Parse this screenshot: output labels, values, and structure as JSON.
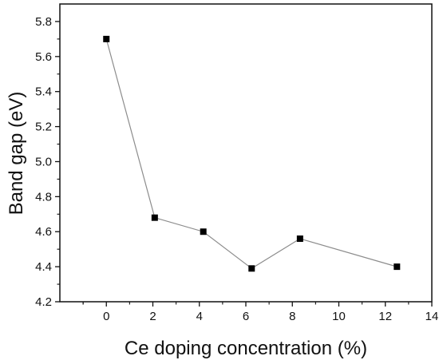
{
  "chart_data": {
    "type": "line",
    "title": "",
    "xlabel": "Ce doping concentration (%)",
    "ylabel": "Band gap (eV)",
    "xlim": [
      -2,
      14
    ],
    "ylim": [
      4.2,
      5.9
    ],
    "x_ticks": [
      0,
      2,
      4,
      6,
      8,
      10,
      12,
      14
    ],
    "y_ticks": [
      4.2,
      4.4,
      4.6,
      4.8,
      5.0,
      5.2,
      5.4,
      5.6,
      5.8
    ],
    "x_tick_labels": [
      "0",
      "2",
      "4",
      "6",
      "8",
      "10",
      "12",
      "14"
    ],
    "y_tick_labels": [
      "4.2",
      "4.4",
      "4.6",
      "4.8",
      "5.0",
      "5.2",
      "5.4",
      "5.6",
      "5.8"
    ],
    "grid": false,
    "legend": "none",
    "marker": "square",
    "line_color": "#8c8c8c",
    "marker_color": "#000000",
    "series": [
      {
        "x": [
          0,
          2.08,
          4.17,
          6.25,
          8.33,
          12.5
        ],
        "y": [
          5.7,
          4.68,
          4.6,
          4.39,
          4.56,
          4.4
        ]
      }
    ]
  }
}
